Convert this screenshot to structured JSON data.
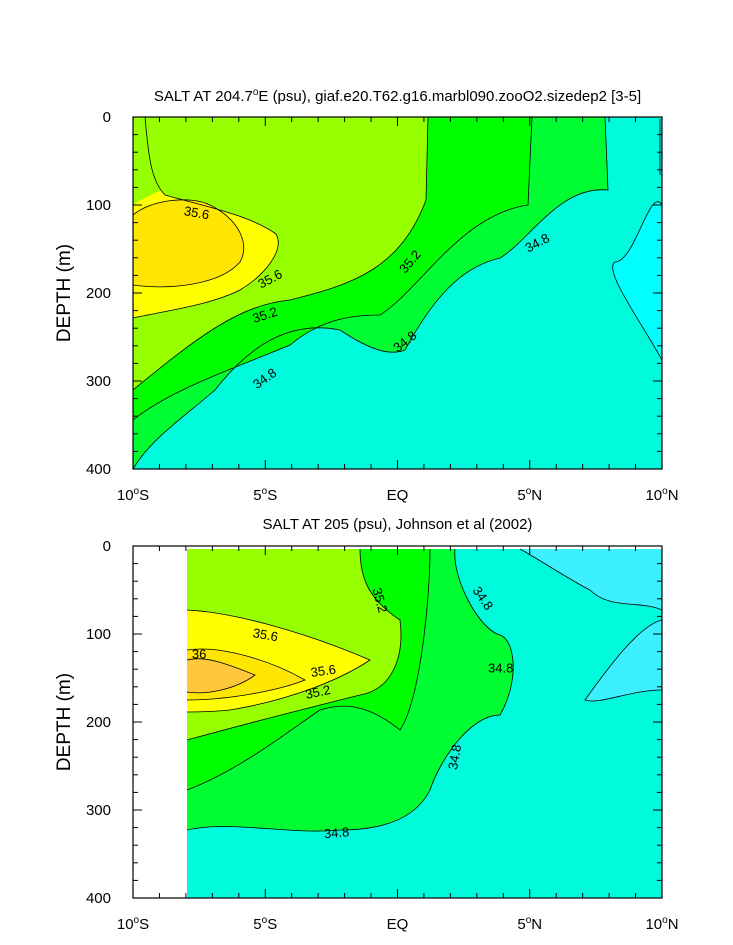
{
  "colors": {
    "band_lt_34_8_deep": "#00ffff",
    "band_34_8_35_0": "#00fadc",
    "band_35_0_35_2": "#00ff32",
    "band_35_2_35_4": "#00ff00",
    "band_35_4_35_6": "#96ff00",
    "band_35_6_35_8": "#ffff00",
    "band_35_8_36_0": "#ffe600",
    "band_gt_36_0": "#ffc83c",
    "band_34_6_34_8": "#3cf0ff",
    "no_data": "#ffffff"
  },
  "chart_data": [
    {
      "type": "contour",
      "title_parts": [
        "SALT AT 204.7",
        "o",
        "E (psu), giaf.e20.T62.g16.marbl090.zooO2.sizedep2 [3-5]"
      ],
      "ylabel": "DEPTH (m)",
      "xlim": [
        -10,
        10
      ],
      "ylim": [
        400,
        0
      ],
      "x_ticks": [
        {
          "value": -10,
          "label": "10",
          "sup": "o",
          "suffix": "S"
        },
        {
          "value": -5,
          "label": "5",
          "sup": "o",
          "suffix": "S"
        },
        {
          "value": 0,
          "label": "EQ",
          "sup": "",
          "suffix": ""
        },
        {
          "value": 5,
          "label": "5",
          "sup": "o",
          "suffix": "N"
        },
        {
          "value": 10,
          "label": "10",
          "sup": "o",
          "suffix": "N"
        }
      ],
      "y_ticks": [
        {
          "value": 0,
          "label": "0"
        },
        {
          "value": 100,
          "label": "100"
        },
        {
          "value": 200,
          "label": "200"
        },
        {
          "value": 300,
          "label": "300"
        },
        {
          "value": 400,
          "label": "400"
        }
      ],
      "contour_labels": [
        {
          "text": "35.6",
          "x": -7.6,
          "y": 110,
          "angle": 10
        },
        {
          "text": "35.6",
          "x": -4.8,
          "y": 185,
          "angle": -28
        },
        {
          "text": "35.2",
          "x": -5.0,
          "y": 226,
          "angle": -18
        },
        {
          "text": "35.2",
          "x": 0.5,
          "y": 165,
          "angle": -50
        },
        {
          "text": "34.8",
          "x": 5.3,
          "y": 144,
          "angle": -28
        },
        {
          "text": "34.8",
          "x": 0.3,
          "y": 256,
          "angle": -38
        },
        {
          "text": "34.8",
          "x": -5.0,
          "y": 298,
          "angle": -35
        }
      ]
    },
    {
      "type": "contour",
      "title_parts": [
        "SALT AT 205 (psu), Johnson et al (2002)",
        "",
        ""
      ],
      "ylabel": "DEPTH (m)",
      "xlim": [
        -10,
        10
      ],
      "ylim": [
        400,
        0
      ],
      "data_xrange": [
        -8,
        10
      ],
      "x_ticks": [
        {
          "value": -10,
          "label": "10",
          "sup": "o",
          "suffix": "S"
        },
        {
          "value": -5,
          "label": "5",
          "sup": "o",
          "suffix": "S"
        },
        {
          "value": 0,
          "label": "EQ",
          "sup": "",
          "suffix": ""
        },
        {
          "value": 5,
          "label": "5",
          "sup": "o",
          "suffix": "N"
        },
        {
          "value": 10,
          "label": "10",
          "sup": "o",
          "suffix": "N"
        }
      ],
      "y_ticks": [
        {
          "value": 0,
          "label": "0"
        },
        {
          "value": 100,
          "label": "100"
        },
        {
          "value": 200,
          "label": "200"
        },
        {
          "value": 300,
          "label": "300"
        },
        {
          "value": 400,
          "label": "400"
        }
      ],
      "contour_labels": [
        {
          "text": "35.6",
          "x": -5.0,
          "y": 102,
          "angle": 10
        },
        {
          "text": "36",
          "x": -7.5,
          "y": 124,
          "angle": 0
        },
        {
          "text": "35.6",
          "x": -2.8,
          "y": 143,
          "angle": -8
        },
        {
          "text": "35.2",
          "x": -3.0,
          "y": 167,
          "angle": -12
        },
        {
          "text": "35.2",
          "x": -0.7,
          "y": 62,
          "angle": 75
        },
        {
          "text": "34.8",
          "x": 3.2,
          "y": 60,
          "angle": 55
        },
        {
          "text": "34.8",
          "x": 3.9,
          "y": 140,
          "angle": 0
        },
        {
          "text": "34.8",
          "x": 2.2,
          "y": 240,
          "angle": -80
        },
        {
          "text": "34.8",
          "x": -2.3,
          "y": 327,
          "angle": -5
        }
      ]
    }
  ]
}
